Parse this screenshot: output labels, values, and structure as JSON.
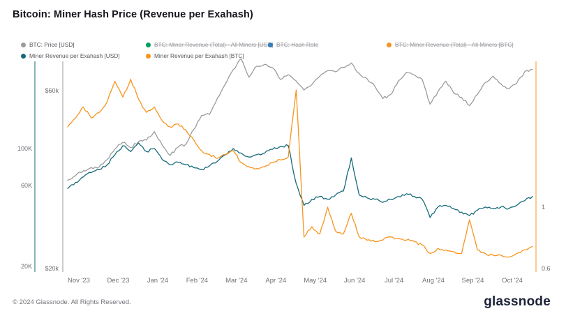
{
  "header": {
    "title": "Bitcoin: Miner Hash Price (Revenue per Exahash)"
  },
  "legend": [
    {
      "label": "BTC: Price [USD]",
      "color": "#9b9b9b",
      "disabled": false
    },
    {
      "label": "BTC: Miner Revenue (Total) - All Miners [USD]",
      "color": "#00a05a",
      "disabled": true
    },
    {
      "label": "BTC: Hash Rate",
      "color": "#377eb8",
      "disabled": true
    },
    {
      "label": "BTC: Miner Revenue (Total) - All Miners [BTC]",
      "color": "#f7941d",
      "disabled": true
    },
    {
      "label": "Miner Revenue per Exahash [USD]",
      "color": "#16697a",
      "disabled": false
    },
    {
      "label": "Miner Revenue per Exahash [BTC]",
      "color": "#f7941d",
      "disabled": false
    }
  ],
  "footer": {
    "copyright": "© 2024 Glassnode. All Rights Reserved.",
    "logo": "glassnode"
  },
  "chart_data": {
    "type": "line",
    "title": "Bitcoin: Miner Hash Price (Revenue per Exahash)",
    "x_tick_labels": [
      "Nov '23",
      "Dec '23",
      "Jan '24",
      "Feb '24",
      "Mar '24",
      "Apr '24",
      "May '24",
      "Jun '24",
      "Jul '24",
      "Aug '24",
      "Sep '24",
      "Oct '24"
    ],
    "axes": {
      "price_usd": {
        "side": "left",
        "scale": "log",
        "color": "#9b9b9b",
        "ticks": [
          {
            "label": "$60k",
            "value": 60000
          },
          {
            "label": "$20k",
            "value": 20000
          }
        ]
      },
      "hashprice_usd": {
        "side": "left",
        "scale": "log",
        "color": "#16697a",
        "ticks": [
          {
            "label": "100K",
            "value": 100000
          },
          {
            "label": "60K",
            "value": 60000
          },
          {
            "label": "20K",
            "value": 20000
          }
        ]
      },
      "hashprice_btc": {
        "side": "right",
        "scale": "log",
        "color": "#f7941d",
        "ticks": [
          {
            "label": "1",
            "value": 1
          },
          {
            "label": "0.6",
            "value": 0.6
          }
        ]
      }
    },
    "series": [
      {
        "name": "BTC: Price [USD]",
        "axis": "price_usd",
        "color": "#9b9b9b",
        "values": [
          34500,
          35500,
          36600,
          37300,
          37500,
          39200,
          41800,
          43600,
          42200,
          43800,
          44200,
          46600,
          42800,
          40200,
          42300,
          43100,
          47200,
          51500,
          51800,
          57300,
          62500,
          68300,
          73100,
          65200,
          69800,
          70600,
          69100,
          64300,
          66200,
          63700,
          60200,
          62300,
          65600,
          67900,
          67400,
          69300,
          71200,
          66700,
          64600,
          61600,
          57100,
          58600,
          63800,
          67200,
          66100,
          64300,
          55200,
          59600,
          63600,
          59100,
          57600,
          54700,
          58600,
          63100,
          65600,
          62600,
          60700,
          62800,
          67400,
          68400
        ]
      },
      {
        "name": "Miner Revenue per Exahash [USD]",
        "axis": "hashprice_usd",
        "color": "#16697a",
        "values": [
          58000,
          63000,
          68000,
          72000,
          75000,
          80000,
          92000,
          104000,
          96000,
          108000,
          96000,
          100000,
          86000,
          80000,
          83000,
          80000,
          77000,
          75000,
          79000,
          84000,
          92000,
          100000,
          94000,
          89000,
          92000,
          94000,
          99000,
          103000,
          104000,
          62000,
          46000,
          50000,
          52000,
          50000,
          53000,
          56000,
          88000,
          53000,
          51000,
          50000,
          48000,
          50000,
          52000,
          54000,
          52000,
          50000,
          39000,
          45000,
          46000,
          44000,
          42000,
          40000,
          43000,
          45000,
          44000,
          45000,
          44000,
          46000,
          49000,
          52000
        ]
      },
      {
        "name": "Miner Revenue per Exahash [BTC]",
        "axis": "hashprice_btc",
        "color": "#f7941d",
        "values": [
          1.95,
          2.1,
          2.3,
          2.1,
          2.2,
          2.4,
          2.85,
          2.5,
          2.9,
          2.45,
          2.2,
          2.3,
          2.05,
          1.95,
          2.0,
          1.9,
          1.75,
          1.6,
          1.55,
          1.5,
          1.55,
          1.6,
          1.45,
          1.4,
          1.38,
          1.4,
          1.45,
          1.48,
          1.52,
          2.65,
          0.78,
          0.85,
          0.8,
          1.0,
          0.82,
          0.8,
          0.95,
          0.78,
          0.76,
          0.75,
          0.76,
          0.78,
          0.77,
          0.76,
          0.75,
          0.73,
          0.68,
          0.71,
          0.7,
          0.69,
          0.68,
          0.9,
          0.7,
          0.68,
          0.67,
          0.67,
          0.66,
          0.68,
          0.7,
          0.72
        ]
      }
    ]
  }
}
